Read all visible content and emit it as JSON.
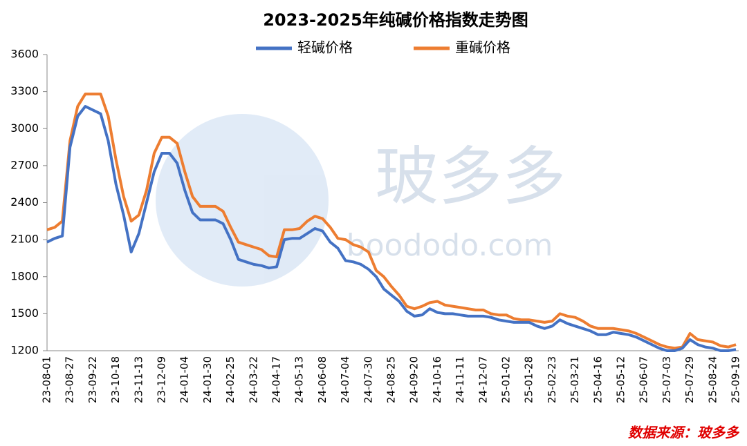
{
  "chart_data": {
    "type": "line",
    "title": "2023-2025年纯碱价格指数走势图",
    "categories": [
      "23-08-01",
      null,
      null,
      "23-08-27",
      null,
      null,
      "23-09-22",
      null,
      null,
      "23-10-18",
      null,
      null,
      "23-11-13",
      null,
      null,
      "23-12-09",
      null,
      null,
      "24-01-04",
      null,
      null,
      "24-01-30",
      null,
      null,
      "24-02-25",
      null,
      null,
      "24-03-22",
      null,
      null,
      "24-04-17",
      null,
      null,
      "24-05-13",
      null,
      null,
      "24-06-08",
      null,
      null,
      "24-07-04",
      null,
      null,
      "24-07-30",
      null,
      null,
      "24-08-25",
      null,
      null,
      "24-09-20",
      null,
      null,
      "24-10-16",
      null,
      null,
      "24-11-11",
      null,
      null,
      "24-12-07",
      null,
      null,
      "25-01-02",
      null,
      null,
      "25-01-28",
      null,
      null,
      "25-02-23",
      null,
      null,
      "25-03-21",
      null,
      null,
      "25-04-16",
      null,
      null,
      "25-05-12",
      null,
      null,
      "25-06-07",
      null,
      null,
      "25-07-03",
      null,
      null,
      "25-07-29",
      null,
      null,
      "25-08-24",
      null,
      null,
      "25-09-19"
    ],
    "series": [
      {
        "name": "轻碱价格",
        "color": "#4472c4",
        "values": [
          2080,
          2110,
          2130,
          2850,
          3100,
          3180,
          3150,
          3120,
          2900,
          2550,
          2300,
          2000,
          2150,
          2400,
          2650,
          2800,
          2800,
          2720,
          2500,
          2320,
          2260,
          2260,
          2260,
          2230,
          2100,
          1940,
          1920,
          1900,
          1890,
          1870,
          1880,
          2100,
          2110,
          2110,
          2150,
          2190,
          2170,
          2080,
          2030,
          1930,
          1920,
          1900,
          1860,
          1800,
          1700,
          1650,
          1600,
          1520,
          1480,
          1490,
          1540,
          1510,
          1500,
          1500,
          1490,
          1480,
          1480,
          1480,
          1470,
          1450,
          1440,
          1430,
          1430,
          1430,
          1400,
          1380,
          1400,
          1450,
          1420,
          1400,
          1380,
          1360,
          1330,
          1330,
          1350,
          1340,
          1330,
          1310,
          1280,
          1250,
          1220,
          1200,
          1200,
          1220,
          1290,
          1250,
          1230,
          1220,
          1200,
          1200,
          1210
        ]
      },
      {
        "name": "重碱价格",
        "color": "#ed7d31",
        "values": [
          2180,
          2200,
          2250,
          2900,
          3180,
          3280,
          3280,
          3280,
          3100,
          2750,
          2450,
          2250,
          2300,
          2500,
          2800,
          2930,
          2930,
          2880,
          2650,
          2450,
          2370,
          2370,
          2370,
          2330,
          2200,
          2080,
          2060,
          2040,
          2020,
          1970,
          1960,
          2180,
          2180,
          2190,
          2250,
          2290,
          2270,
          2200,
          2110,
          2100,
          2060,
          2040,
          2000,
          1850,
          1800,
          1720,
          1650,
          1560,
          1540,
          1560,
          1590,
          1600,
          1570,
          1560,
          1550,
          1540,
          1530,
          1530,
          1500,
          1490,
          1490,
          1460,
          1450,
          1450,
          1440,
          1430,
          1440,
          1500,
          1480,
          1470,
          1440,
          1400,
          1380,
          1380,
          1380,
          1370,
          1360,
          1340,
          1310,
          1280,
          1250,
          1230,
          1220,
          1230,
          1340,
          1290,
          1280,
          1270,
          1240,
          1230,
          1250
        ]
      }
    ],
    "ylim": [
      1200,
      3600
    ],
    "yticks": [
      1200,
      1500,
      1800,
      2100,
      2400,
      2700,
      3000,
      3300,
      3600
    ],
    "grid": false,
    "legend": "top",
    "watermark": {
      "name": "玻多多",
      "url": "boododo.com"
    },
    "source": "数据来源：玻多多"
  }
}
